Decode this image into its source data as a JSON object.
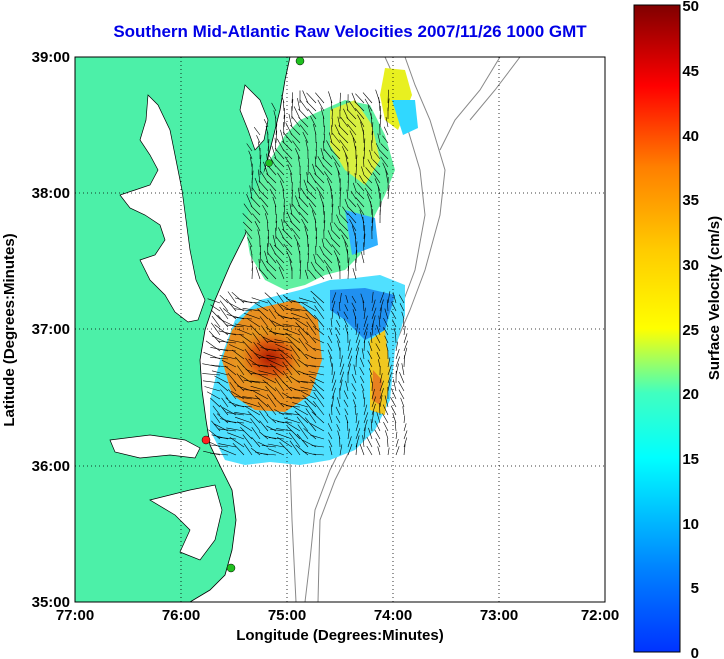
{
  "title": "Southern Mid-Atlantic Raw Velocities 2007/11/26 1000 GMT",
  "map": {
    "x_axis": {
      "label": "Longitude (Degrees:Minutes)",
      "ticks": [
        "77:00",
        "76:00",
        "75:00",
        "74:00",
        "73:00",
        "72:00"
      ]
    },
    "y_axis": {
      "label": "Latitude (Degrees:Minutes)",
      "ticks": [
        "39:00",
        "38:00",
        "37:00",
        "36:00",
        "35:00"
      ]
    },
    "grid": "dotted",
    "land_color": "#4cf0a8",
    "ocean_color": "#ffffff"
  },
  "colorbar": {
    "label": "Surface Velocity (cm/s)",
    "ticks": [
      "50",
      "45",
      "40",
      "35",
      "30",
      "25",
      "20",
      "15",
      "10",
      "5",
      "0"
    ],
    "min": 0,
    "max": 50,
    "colormap": "jet"
  }
}
